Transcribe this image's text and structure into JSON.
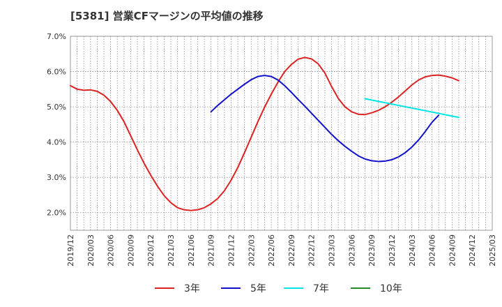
{
  "chart_data": {
    "type": "line",
    "title": "[5381]  営業CFマージンの平均値の推移",
    "xlabel": "",
    "ylabel": "",
    "ylim": [
      1.5,
      7.0
    ],
    "yticks": [
      2.0,
      3.0,
      4.0,
      5.0,
      6.0,
      7.0
    ],
    "ytick_labels": [
      "2.0%",
      "3.0%",
      "4.0%",
      "5.0%",
      "6.0%",
      "7.0%"
    ],
    "x_tick_labels": [
      "2019/12",
      "2020/03",
      "2020/06",
      "2020/09",
      "2020/12",
      "2021/03",
      "2021/06",
      "2021/09",
      "2021/12",
      "2022/03",
      "2022/06",
      "2022/09",
      "2022/12",
      "2023/03",
      "2023/06",
      "2023/09",
      "2023/12",
      "2024/03",
      "2024/06",
      "2024/09",
      "2024/12",
      "2025/03"
    ],
    "grid": true,
    "legend_position": "bottom",
    "series": [
      {
        "name": "3年",
        "color": "#dd2222",
        "points": [
          [
            "2019/12",
            5.6
          ],
          [
            "2020/01",
            5.5
          ],
          [
            "2020/02",
            5.47
          ],
          [
            "2020/03",
            5.48
          ],
          [
            "2020/04",
            5.44
          ],
          [
            "2020/05",
            5.33
          ],
          [
            "2020/06",
            5.15
          ],
          [
            "2020/07",
            4.9
          ],
          [
            "2020/08",
            4.58
          ],
          [
            "2020/09",
            4.18
          ],
          [
            "2020/10",
            3.78
          ],
          [
            "2020/11",
            3.4
          ],
          [
            "2020/12",
            3.06
          ],
          [
            "2021/01",
            2.75
          ],
          [
            "2021/02",
            2.48
          ],
          [
            "2021/03",
            2.28
          ],
          [
            "2021/04",
            2.14
          ],
          [
            "2021/05",
            2.08
          ],
          [
            "2021/06",
            2.06
          ],
          [
            "2021/07",
            2.08
          ],
          [
            "2021/08",
            2.14
          ],
          [
            "2021/09",
            2.25
          ],
          [
            "2021/10",
            2.4
          ],
          [
            "2021/11",
            2.62
          ],
          [
            "2021/12",
            2.92
          ],
          [
            "2022/01",
            3.28
          ],
          [
            "2022/02",
            3.7
          ],
          [
            "2022/03",
            4.14
          ],
          [
            "2022/04",
            4.58
          ],
          [
            "2022/05",
            4.99
          ],
          [
            "2022/06",
            5.36
          ],
          [
            "2022/07",
            5.7
          ],
          [
            "2022/08",
            6.0
          ],
          [
            "2022/09",
            6.2
          ],
          [
            "2022/10",
            6.35
          ],
          [
            "2022/11",
            6.4
          ],
          [
            "2022/12",
            6.36
          ],
          [
            "2023/01",
            6.22
          ],
          [
            "2023/02",
            5.96
          ],
          [
            "2023/03",
            5.58
          ],
          [
            "2023/04",
            5.24
          ],
          [
            "2023/05",
            5.0
          ],
          [
            "2023/06",
            4.86
          ],
          [
            "2023/07",
            4.79
          ],
          [
            "2023/08",
            4.78
          ],
          [
            "2023/09",
            4.83
          ],
          [
            "2023/10",
            4.9
          ],
          [
            "2023/11",
            5.0
          ],
          [
            "2023/12",
            5.13
          ],
          [
            "2024/01",
            5.28
          ],
          [
            "2024/02",
            5.45
          ],
          [
            "2024/03",
            5.62
          ],
          [
            "2024/04",
            5.76
          ],
          [
            "2024/05",
            5.85
          ],
          [
            "2024/06",
            5.89
          ],
          [
            "2024/07",
            5.9
          ],
          [
            "2024/08",
            5.87
          ],
          [
            "2024/09",
            5.82
          ],
          [
            "2024/10",
            5.74
          ]
        ]
      },
      {
        "name": "5年",
        "color": "#1111cc",
        "points": [
          [
            "2021/09",
            4.86
          ],
          [
            "2021/10",
            5.04
          ],
          [
            "2021/11",
            5.2
          ],
          [
            "2021/12",
            5.36
          ],
          [
            "2022/01",
            5.5
          ],
          [
            "2022/02",
            5.64
          ],
          [
            "2022/03",
            5.77
          ],
          [
            "2022/04",
            5.86
          ],
          [
            "2022/05",
            5.89
          ],
          [
            "2022/06",
            5.86
          ],
          [
            "2022/07",
            5.76
          ],
          [
            "2022/08",
            5.6
          ],
          [
            "2022/09",
            5.41
          ],
          [
            "2022/10",
            5.21
          ],
          [
            "2022/11",
            5.02
          ],
          [
            "2022/12",
            4.82
          ],
          [
            "2023/01",
            4.62
          ],
          [
            "2023/02",
            4.42
          ],
          [
            "2023/03",
            4.22
          ],
          [
            "2023/04",
            4.04
          ],
          [
            "2023/05",
            3.88
          ],
          [
            "2023/06",
            3.74
          ],
          [
            "2023/07",
            3.61
          ],
          [
            "2023/08",
            3.52
          ],
          [
            "2023/09",
            3.47
          ],
          [
            "2023/10",
            3.45
          ],
          [
            "2023/11",
            3.46
          ],
          [
            "2023/12",
            3.5
          ],
          [
            "2024/01",
            3.58
          ],
          [
            "2024/02",
            3.7
          ],
          [
            "2024/03",
            3.86
          ],
          [
            "2024/04",
            4.06
          ],
          [
            "2024/05",
            4.3
          ],
          [
            "2024/06",
            4.56
          ],
          [
            "2024/07",
            4.76
          ]
        ]
      },
      {
        "name": "7年",
        "color": "#00e5e5",
        "points": [
          [
            "2023/08",
            5.23
          ],
          [
            "2024/10",
            4.7
          ]
        ]
      },
      {
        "name": "10年",
        "color": "#228b22",
        "points": []
      }
    ]
  }
}
